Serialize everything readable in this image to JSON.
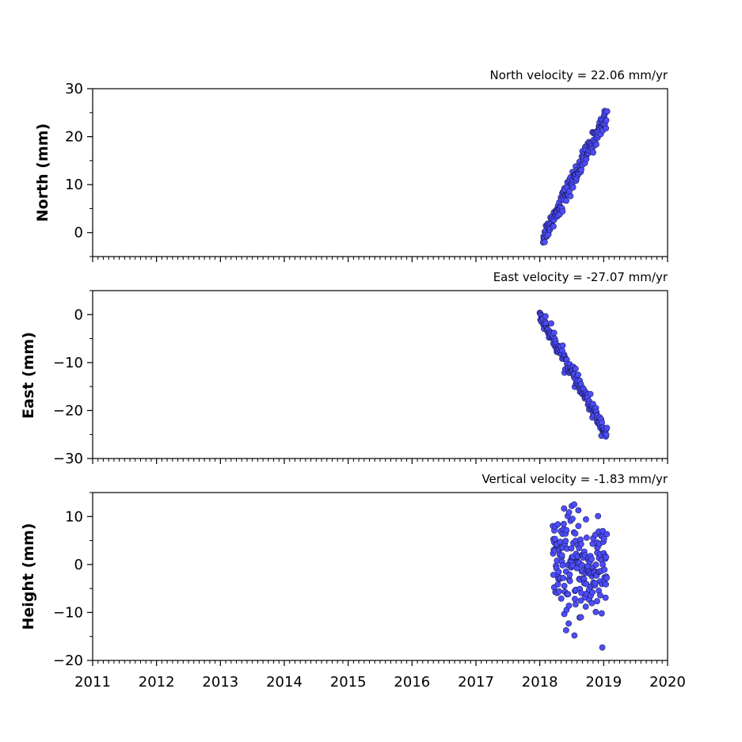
{
  "chart_data": [
    {
      "type": "scatter",
      "title": "North velocity = 22.06 mm/yr",
      "ylabel": "North (mm)",
      "xlim": [
        2011,
        2020
      ],
      "ylim": [
        -5,
        30
      ],
      "yticks": [
        0,
        10,
        20,
        30
      ],
      "ytick_labels": [
        "0",
        "10",
        "20",
        "30"
      ],
      "x_start": 2018.05,
      "x_end": 2019.05,
      "y_start": -1.0,
      "y_end": 24.5,
      "noise": 1.0,
      "n_points": 170,
      "color": "#4d4dff"
    },
    {
      "type": "scatter",
      "title": "East velocity = -27.07 mm/yr",
      "ylabel": "East (mm)",
      "xlim": [
        2011,
        2020
      ],
      "ylim": [
        -30,
        5
      ],
      "yticks": [
        -30,
        -20,
        -10,
        0
      ],
      "ytick_labels": [
        "−30",
        "−20",
        "−10",
        "0"
      ],
      "x_start": 2018.0,
      "x_end": 2019.05,
      "y_start": 0.0,
      "y_end": -25.0,
      "noise": 0.8,
      "n_points": 170,
      "color": "#4d4dff"
    },
    {
      "type": "scatter",
      "title": "Vertical velocity = -1.83 mm/yr",
      "ylabel": "Height (mm)",
      "xlim": [
        2011,
        2020
      ],
      "ylim": [
        -20,
        15
      ],
      "yticks": [
        -20,
        -10,
        0,
        10
      ],
      "ytick_labels": [
        "−20",
        "−10",
        "0",
        "10"
      ],
      "xticks": [
        2011,
        2012,
        2013,
        2014,
        2015,
        2016,
        2017,
        2018,
        2019,
        2020
      ],
      "xtick_labels": [
        "2011",
        "2012",
        "2013",
        "2014",
        "2015",
        "2016",
        "2017",
        "2018",
        "2019",
        "2020"
      ],
      "x_start": 2018.2,
      "x_end": 2019.05,
      "y_start": 0.0,
      "y_end": -1.8,
      "noise": 5.5,
      "n_points": 200,
      "color": "#4d4dff"
    }
  ]
}
